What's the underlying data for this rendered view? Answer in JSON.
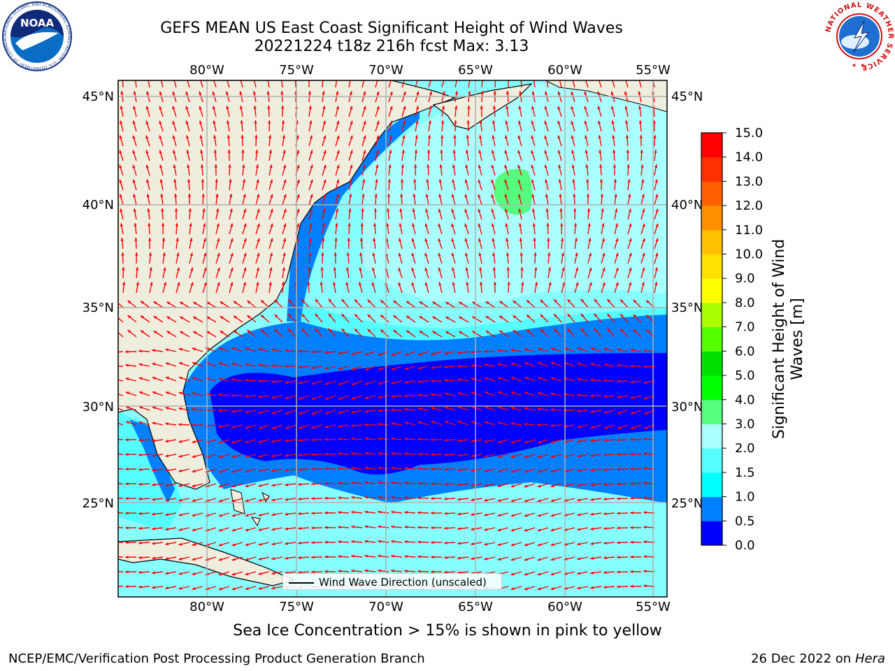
{
  "title": {
    "line1": "GEFS MEAN US East Coast Significant Height of Wind Waves",
    "line2": "20221224 t18z 216h fcst   Max: 3.13"
  },
  "map": {
    "lon_labels": [
      "80°W",
      "75°W",
      "70°W",
      "65°W",
      "60°W",
      "55°W"
    ],
    "lat_labels": [
      "45°N",
      "40°N",
      "35°N",
      "30°N",
      "25°N"
    ],
    "legend_label": "Wind Wave Direction (unscaled)",
    "arrow_color": "#ff0000",
    "land_color": "#efedde"
  },
  "colorbar": {
    "label": "Significant Height of Wind Waves [m]",
    "ticks": [
      "0.0",
      "0.5",
      "1.0",
      "1.5",
      "2.0",
      "3.0",
      "4.0",
      "5.0",
      "6.0",
      "7.0",
      "8.0",
      "9.0",
      "10.0",
      "11.0",
      "12.0",
      "13.0",
      "14.0",
      "15.0"
    ],
    "colors": [
      "#0000ff",
      "#0080ff",
      "#00ffff",
      "#55ffff",
      "#aaffff",
      "#55ff80",
      "#00ff00",
      "#00e000",
      "#55ff00",
      "#aaff00",
      "#ffff00",
      "#ffe000",
      "#ffc000",
      "#ff9000",
      "#ff6000",
      "#ff3000",
      "#ff0000"
    ]
  },
  "logos": {
    "noaa_text": "NOAA",
    "noaa_ring": "NATIONAL OCEANIC AND ATMOSPHERIC ADMINISTRATION · U.S. DEPARTMENT OF COMMERCE",
    "nws_ring": "NATIONAL WEATHER SERVICE"
  },
  "footer": {
    "sea_ice_note": "Sea Ice Concentration > 15% is shown in pink to yellow",
    "credit": "NCEP/EMC/Verification Post Processing Product Generation Branch",
    "date_prefix": "26 Dec 2022 on",
    "machine": "Hera"
  }
}
